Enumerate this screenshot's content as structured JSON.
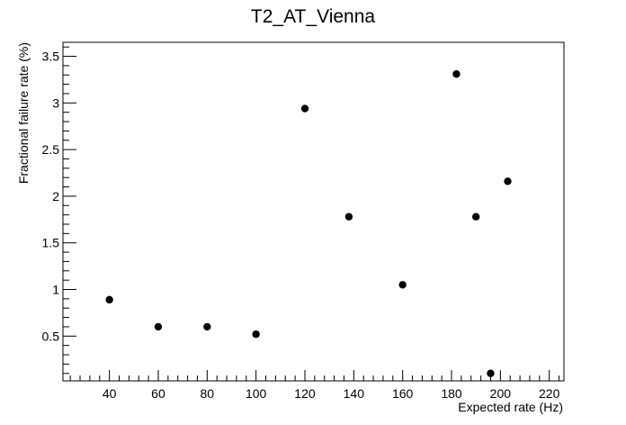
{
  "chart_data": {
    "type": "scatter",
    "title": "T2_AT_Vienna",
    "xlabel": "Expected rate (Hz)",
    "ylabel": "Fractional failure rate (%)",
    "xlim": [
      21,
      226
    ],
    "ylim": [
      0.02,
      3.65
    ],
    "x_ticks": [
      40,
      60,
      80,
      100,
      120,
      140,
      160,
      180,
      200,
      220
    ],
    "x_tick_labels": [
      "40",
      "60",
      "80",
      "100",
      "120",
      "140",
      "160",
      "180",
      "200",
      "220"
    ],
    "y_ticks": [
      0.5,
      1,
      1.5,
      2,
      2.5,
      3,
      3.5
    ],
    "y_tick_labels": [
      "0.5",
      "1",
      "1.5",
      "2",
      "2.5",
      "3",
      "3.5"
    ],
    "grid": false,
    "marker_color": "#000000",
    "series": [
      {
        "x": [
          40,
          60,
          80,
          100,
          120,
          138,
          160,
          182,
          190,
          196,
          203
        ],
        "y": [
          0.89,
          0.6,
          0.6,
          0.52,
          2.94,
          1.78,
          1.05,
          3.31,
          1.78,
          0.1,
          2.16
        ]
      }
    ]
  }
}
